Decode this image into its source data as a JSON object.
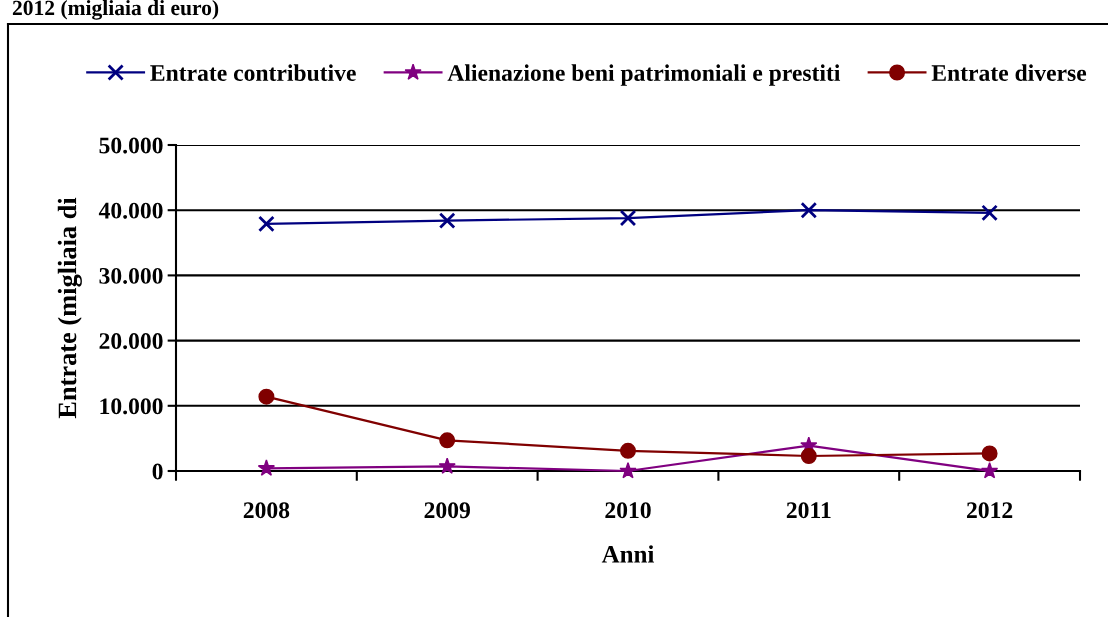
{
  "chart_data": {
    "type": "line",
    "title": "2012 (migliaia di euro)",
    "xlabel": "Anni",
    "ylabel": "Entrate (migliaia di",
    "categories": [
      "2008",
      "2009",
      "2010",
      "2011",
      "2012"
    ],
    "series": [
      {
        "name": "Entrate contributive",
        "color": "#000080",
        "marker": "cross",
        "values": [
          37900,
          38400,
          38800,
          40000,
          39600
        ]
      },
      {
        "name": "Alienazione beni patrimoniali e prestiti",
        "color": "#800080",
        "marker": "star",
        "values": [
          400,
          700,
          0,
          3900,
          0
        ]
      },
      {
        "name": "Entrate diverse",
        "color": "#800000",
        "marker": "circle",
        "values": [
          11400,
          4700,
          3100,
          2300,
          2700
        ]
      }
    ],
    "ylim": [
      0,
      50000
    ],
    "yticks": [
      0,
      {
        "value": 10000,
        "label": "10.000"
      },
      {
        "value": 20000,
        "label": "20.000"
      },
      {
        "value": 30000,
        "label": "30.000"
      },
      {
        "value": 40000,
        "label": "40.000"
      },
      {
        "value": 50000,
        "label": "50.000"
      }
    ],
    "grid": "y",
    "legend": "top",
    "line_style": "solid"
  }
}
